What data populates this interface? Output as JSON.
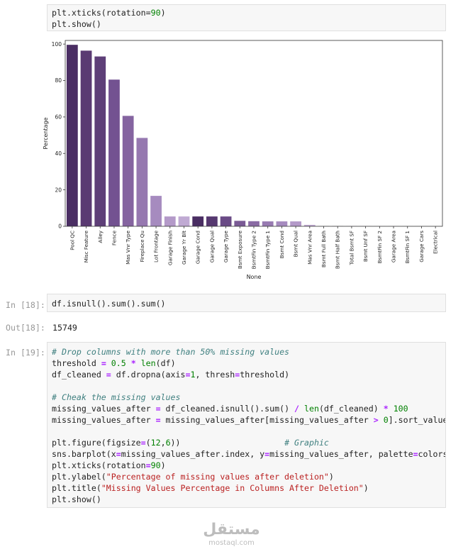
{
  "cell_top": {
    "lines": [
      "plt.xticks(rotation=90)",
      "plt.show()"
    ]
  },
  "chart_data": {
    "type": "bar",
    "ylabel": "Percentage",
    "xlabel": "None",
    "ylim": [
      0,
      102
    ],
    "yticks": [
      0,
      20,
      40,
      60,
      80,
      100
    ],
    "categories": [
      "Pool QC",
      "Misc Feature",
      "Alley",
      "Fence",
      "Mas Vnr Type",
      "Fireplace Qu",
      "Lot Frontage",
      "Garage Finish",
      "Garage Yr Blt",
      "Garage Cond",
      "Garage Qual",
      "Garage Type",
      "Bsmt Exposure",
      "BsmtFin Type 2",
      "BsmtFin Type 1",
      "Bsmt Cond",
      "Bsmt Qual",
      "Mas Vnr Area",
      "Bsmt Full Bath",
      "Bsmt Half Bath",
      "Total Bsmt SF",
      "Bsmt Unf SF",
      "BsmtFin SF 2",
      "Garage Area",
      "BsmtFin SF 1",
      "Garage Cars",
      "Electrical"
    ],
    "values": [
      99.6,
      96.4,
      93.2,
      80.5,
      60.6,
      48.5,
      16.7,
      5.4,
      5.4,
      5.4,
      5.4,
      5.4,
      3.0,
      2.8,
      2.7,
      2.7,
      2.7,
      0.8,
      0.07,
      0.07,
      0.03,
      0.03,
      0.03,
      0.03,
      0.03,
      0.03,
      0.03
    ],
    "colors": [
      "#4a2e63",
      "#5a3a72",
      "#5e3f78",
      "#735291",
      "#8564a0",
      "#9678b0",
      "#a68bbf",
      "#b49ac9",
      "#c0aad3",
      "#4a2e63",
      "#563870",
      "#6a4b86",
      "#7a5a95",
      "#8a6ba4",
      "#987bb2",
      "#a68bbf",
      "#b49ac9",
      "#c0aad3",
      "#4a2e63",
      "#563870",
      "#6a4b86",
      "#7a5a95",
      "#8a6ba4",
      "#987bb2",
      "#a68bbf",
      "#b49ac9",
      "#c0aad3"
    ]
  },
  "cell18": {
    "prompt_in": "In [18]:",
    "code": "df.isnull().sum().sum()",
    "prompt_out": "Out[18]:",
    "output": "15749"
  },
  "cell19": {
    "prompt_in": "In [19]:"
  },
  "watermark": {
    "logo": "مستقل",
    "url": "mostaql.com"
  }
}
